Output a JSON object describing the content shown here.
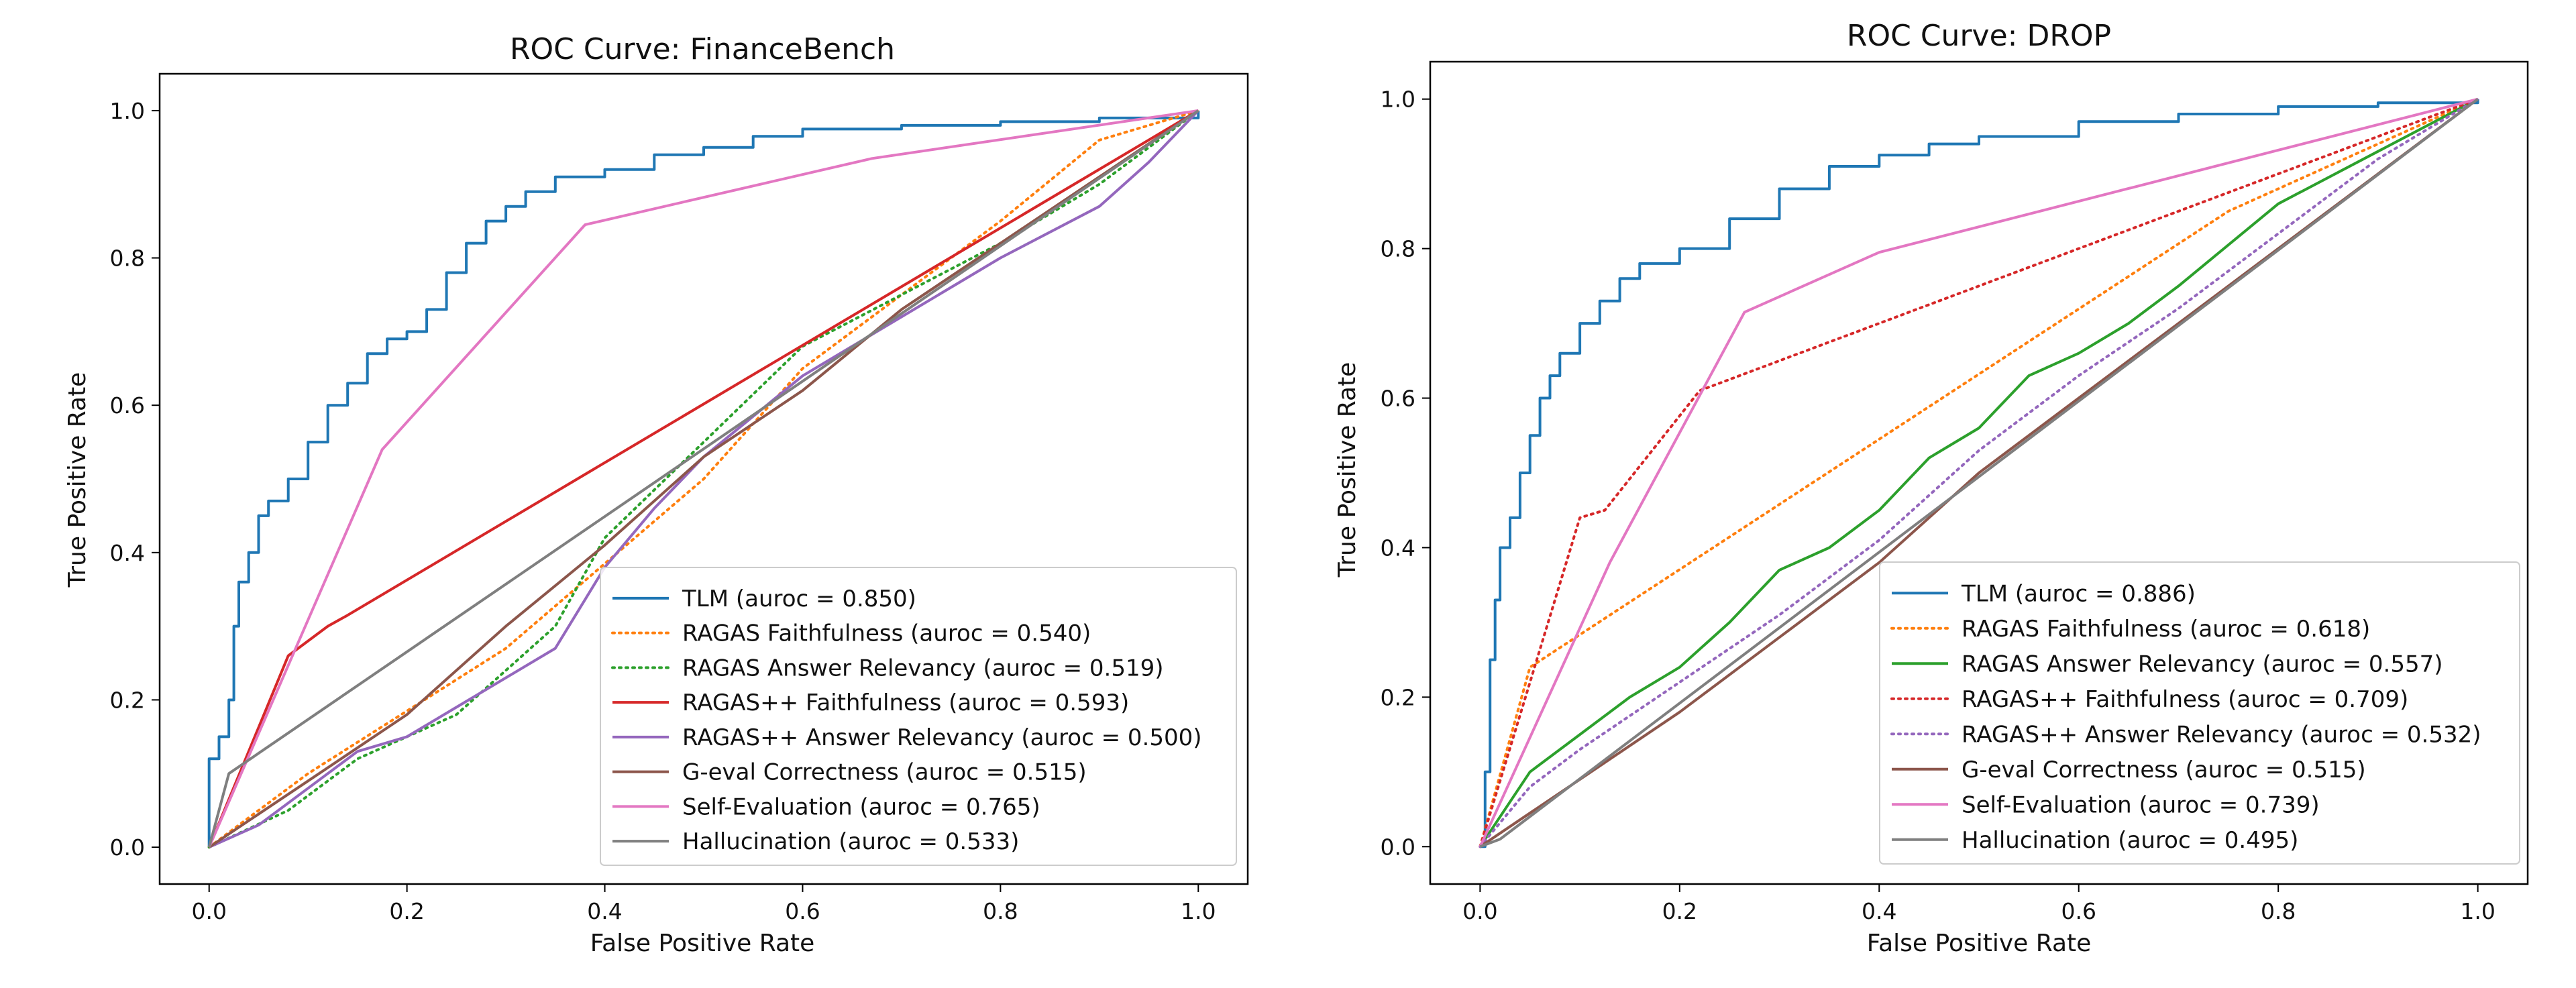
{
  "chart_data": [
    {
      "type": "line",
      "title": "ROC Curve: FinanceBench",
      "xlabel": "False Positive Rate",
      "ylabel": "True Positive Rate",
      "xlim": [
        -0.05,
        1.05
      ],
      "ylim": [
        -0.05,
        1.05
      ],
      "xticks": [
        "0.0",
        "0.2",
        "0.4",
        "0.6",
        "0.8",
        "1.0"
      ],
      "yticks": [
        "0.0",
        "0.2",
        "0.4",
        "0.6",
        "0.8",
        "1.0"
      ],
      "grid": false,
      "legend_position": "lower right",
      "series": [
        {
          "name": "TLM (auroc = 0.850)",
          "color": "#1f77b4",
          "style": "solid",
          "step": true,
          "points": [
            [
              0,
              0
            ],
            [
              0,
              0.12
            ],
            [
              0.01,
              0.15
            ],
            [
              0.02,
              0.2
            ],
            [
              0.025,
              0.3
            ],
            [
              0.03,
              0.36
            ],
            [
              0.04,
              0.4
            ],
            [
              0.05,
              0.45
            ],
            [
              0.06,
              0.47
            ],
            [
              0.08,
              0.5
            ],
            [
              0.1,
              0.55
            ],
            [
              0.12,
              0.6
            ],
            [
              0.14,
              0.63
            ],
            [
              0.16,
              0.67
            ],
            [
              0.18,
              0.69
            ],
            [
              0.2,
              0.7
            ],
            [
              0.22,
              0.73
            ],
            [
              0.24,
              0.78
            ],
            [
              0.26,
              0.82
            ],
            [
              0.28,
              0.85
            ],
            [
              0.3,
              0.87
            ],
            [
              0.32,
              0.89
            ],
            [
              0.35,
              0.91
            ],
            [
              0.4,
              0.92
            ],
            [
              0.45,
              0.94
            ],
            [
              0.5,
              0.95
            ],
            [
              0.55,
              0.965
            ],
            [
              0.6,
              0.975
            ],
            [
              0.7,
              0.98
            ],
            [
              0.8,
              0.985
            ],
            [
              0.9,
              0.99
            ],
            [
              1,
              1
            ]
          ]
        },
        {
          "name": "RAGAS Faithfulness (auroc = 0.540)",
          "color": "#ff7f0e",
          "style": "dotted",
          "points": [
            [
              0,
              0
            ],
            [
              0.1,
              0.1
            ],
            [
              0.3,
              0.27
            ],
            [
              0.5,
              0.5
            ],
            [
              0.6,
              0.65
            ],
            [
              0.7,
              0.75
            ],
            [
              0.8,
              0.85
            ],
            [
              0.9,
              0.96
            ],
            [
              1,
              1
            ]
          ]
        },
        {
          "name": "RAGAS Answer Relevancy (auroc = 0.519)",
          "color": "#2ca02c",
          "style": "dotted",
          "points": [
            [
              0,
              0
            ],
            [
              0.08,
              0.05
            ],
            [
              0.15,
              0.12
            ],
            [
              0.25,
              0.18
            ],
            [
              0.35,
              0.3
            ],
            [
              0.4,
              0.42
            ],
            [
              0.5,
              0.55
            ],
            [
              0.6,
              0.68
            ],
            [
              0.7,
              0.75
            ],
            [
              0.8,
              0.82
            ],
            [
              0.9,
              0.9
            ],
            [
              1,
              1
            ]
          ]
        },
        {
          "name": "RAGAS++ Faithfulness (auroc = 0.593)",
          "color": "#d62728",
          "style": "solid",
          "points": [
            [
              0,
              0
            ],
            [
              0.08,
              0.26
            ],
            [
              0.1,
              0.28
            ],
            [
              0.12,
              0.3
            ],
            [
              0.14,
              0.315
            ],
            [
              1,
              1
            ]
          ]
        },
        {
          "name": "RAGAS++ Answer Relevancy (auroc = 0.500)",
          "color": "#9467bd",
          "style": "solid",
          "points": [
            [
              0,
              0
            ],
            [
              0.05,
              0.03
            ],
            [
              0.1,
              0.08
            ],
            [
              0.15,
              0.13
            ],
            [
              0.2,
              0.15
            ],
            [
              0.25,
              0.19
            ],
            [
              0.3,
              0.23
            ],
            [
              0.35,
              0.27
            ],
            [
              0.4,
              0.38
            ],
            [
              0.45,
              0.46
            ],
            [
              0.5,
              0.53
            ],
            [
              0.6,
              0.64
            ],
            [
              0.7,
              0.72
            ],
            [
              0.8,
              0.8
            ],
            [
              0.9,
              0.87
            ],
            [
              0.95,
              0.93
            ],
            [
              1,
              1
            ]
          ]
        },
        {
          "name": "G-eval Correctness (auroc = 0.515)",
          "color": "#8c564b",
          "style": "solid",
          "points": [
            [
              0,
              0
            ],
            [
              0.1,
              0.09
            ],
            [
              0.2,
              0.18
            ],
            [
              0.3,
              0.3
            ],
            [
              0.4,
              0.41
            ],
            [
              0.5,
              0.53
            ],
            [
              0.6,
              0.62
            ],
            [
              0.7,
              0.73
            ],
            [
              0.8,
              0.82
            ],
            [
              0.9,
              0.91
            ],
            [
              1,
              1
            ]
          ]
        },
        {
          "name": "Self-Evaluation (auroc = 0.765)",
          "color": "#e377c2",
          "style": "solid",
          "points": [
            [
              0,
              0
            ],
            [
              0.175,
              0.54
            ],
            [
              0.38,
              0.845
            ],
            [
              0.67,
              0.935
            ],
            [
              1,
              1
            ]
          ]
        },
        {
          "name": "Hallucination (auroc = 0.533)",
          "color": "#7f7f7f",
          "style": "solid",
          "points": [
            [
              0,
              0
            ],
            [
              0.02,
              0.1
            ],
            [
              1,
              1
            ]
          ]
        }
      ]
    },
    {
      "type": "line",
      "title": "ROC Curve: DROP",
      "xlabel": "False Positive Rate",
      "ylabel": "True Positive Rate",
      "xlim": [
        -0.05,
        1.05
      ],
      "ylim": [
        -0.05,
        1.05
      ],
      "xticks": [
        "0.0",
        "0.2",
        "0.4",
        "0.6",
        "0.8",
        "1.0"
      ],
      "yticks": [
        "0.0",
        "0.2",
        "0.4",
        "0.6",
        "0.8",
        "1.0"
      ],
      "grid": false,
      "legend_position": "lower right",
      "series": [
        {
          "name": "TLM (auroc = 0.886)",
          "color": "#1f77b4",
          "style": "solid",
          "step": true,
          "points": [
            [
              0,
              0
            ],
            [
              0.005,
              0.1
            ],
            [
              0.01,
              0.25
            ],
            [
              0.015,
              0.33
            ],
            [
              0.02,
              0.4
            ],
            [
              0.03,
              0.44
            ],
            [
              0.04,
              0.5
            ],
            [
              0.05,
              0.55
            ],
            [
              0.06,
              0.6
            ],
            [
              0.07,
              0.63
            ],
            [
              0.08,
              0.66
            ],
            [
              0.1,
              0.7
            ],
            [
              0.12,
              0.73
            ],
            [
              0.14,
              0.76
            ],
            [
              0.16,
              0.78
            ],
            [
              0.2,
              0.8
            ],
            [
              0.25,
              0.84
            ],
            [
              0.3,
              0.88
            ],
            [
              0.35,
              0.91
            ],
            [
              0.4,
              0.925
            ],
            [
              0.45,
              0.94
            ],
            [
              0.5,
              0.95
            ],
            [
              0.6,
              0.97
            ],
            [
              0.7,
              0.98
            ],
            [
              0.8,
              0.99
            ],
            [
              0.9,
              0.995
            ],
            [
              1,
              1
            ]
          ]
        },
        {
          "name": "RAGAS Faithfulness (auroc = 0.618)",
          "color": "#ff7f0e",
          "style": "dotted",
          "points": [
            [
              0,
              0
            ],
            [
              0.05,
              0.24
            ],
            [
              0.75,
              0.85
            ],
            [
              1,
              1
            ]
          ]
        },
        {
          "name": "RAGAS Answer Relevancy (auroc = 0.557)",
          "color": "#2ca02c",
          "style": "solid",
          "points": [
            [
              0,
              0
            ],
            [
              0.05,
              0.1
            ],
            [
              0.1,
              0.15
            ],
            [
              0.15,
              0.2
            ],
            [
              0.2,
              0.24
            ],
            [
              0.25,
              0.3
            ],
            [
              0.3,
              0.37
            ],
            [
              0.35,
              0.4
            ],
            [
              0.4,
              0.45
            ],
            [
              0.45,
              0.52
            ],
            [
              0.5,
              0.56
            ],
            [
              0.55,
              0.63
            ],
            [
              0.6,
              0.66
            ],
            [
              0.65,
              0.7
            ],
            [
              0.7,
              0.75
            ],
            [
              0.8,
              0.86
            ],
            [
              0.9,
              0.93
            ],
            [
              1,
              1
            ]
          ]
        },
        {
          "name": "RAGAS++ Faithfulness (auroc = 0.709)",
          "color": "#d62728",
          "style": "dotted",
          "points": [
            [
              0,
              0
            ],
            [
              0.1,
              0.44
            ],
            [
              0.125,
              0.45
            ],
            [
              0.22,
              0.61
            ],
            [
              1,
              1
            ]
          ]
        },
        {
          "name": "RAGAS++ Answer Relevancy (auroc = 0.532)",
          "color": "#9467bd",
          "style": "dotted",
          "points": [
            [
              0,
              0
            ],
            [
              0.05,
              0.08
            ],
            [
              0.1,
              0.13
            ],
            [
              0.2,
              0.22
            ],
            [
              0.3,
              0.31
            ],
            [
              0.4,
              0.41
            ],
            [
              0.5,
              0.53
            ],
            [
              0.6,
              0.63
            ],
            [
              0.7,
              0.72
            ],
            [
              0.8,
              0.82
            ],
            [
              0.9,
              0.92
            ],
            [
              1,
              1
            ]
          ]
        },
        {
          "name": "G-eval Correctness (auroc = 0.515)",
          "color": "#8c564b",
          "style": "solid",
          "points": [
            [
              0,
              0
            ],
            [
              0.1,
              0.09
            ],
            [
              0.2,
              0.18
            ],
            [
              0.3,
              0.28
            ],
            [
              0.4,
              0.38
            ],
            [
              0.5,
              0.5
            ],
            [
              0.6,
              0.6
            ],
            [
              0.7,
              0.7
            ],
            [
              0.8,
              0.8
            ],
            [
              0.9,
              0.9
            ],
            [
              1,
              1
            ]
          ]
        },
        {
          "name": "Self-Evaluation (auroc = 0.739)",
          "color": "#e377c2",
          "style": "solid",
          "points": [
            [
              0,
              0
            ],
            [
              0.13,
              0.38
            ],
            [
              0.265,
              0.715
            ],
            [
              0.4,
              0.795
            ],
            [
              1,
              1
            ]
          ]
        },
        {
          "name": "Hallucination (auroc = 0.495)",
          "color": "#7f7f7f",
          "style": "solid",
          "points": [
            [
              0,
              0
            ],
            [
              0.02,
              0.01
            ],
            [
              1,
              1
            ]
          ]
        }
      ]
    }
  ]
}
